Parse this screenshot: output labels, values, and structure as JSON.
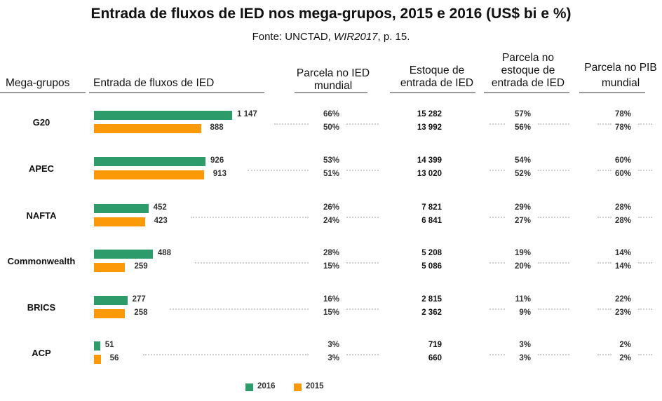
{
  "title": "Entrada de fluxos de IED nos mega-grupos, 2015 e 2016 (US$ bi e %)",
  "source_prefix": "Fonte: UNCTAD, ",
  "source_italic": "WIR2017",
  "source_suffix": ", p. 15.",
  "headers": {
    "group": "Mega-grupos",
    "flows": "Entrada de  fluxos de IED",
    "share_world_1": "Parcela no IED",
    "share_world_2": "mundial",
    "stock_1": "Estoque de",
    "stock_2": "entrada de IED",
    "share_stock_1": "Parcela no",
    "share_stock_2": "estoque de",
    "share_stock_3": "entrada de IED",
    "share_gdp_1": "Parcela no PIB",
    "share_gdp_2": "mundial"
  },
  "colors": {
    "s2016": "#2e9b6a",
    "s2015": "#fb9a06"
  },
  "legend": [
    "2016",
    "2015"
  ],
  "chart_data": {
    "type": "bar",
    "orientation": "horizontal",
    "categories": [
      "G20",
      "APEC",
      "NAFTA",
      "Commonwealth",
      "BRICS",
      "ACP"
    ],
    "series": [
      {
        "name": "2016",
        "values": [
          1147,
          926,
          452,
          488,
          277,
          51
        ]
      },
      {
        "name": "2015",
        "values": [
          888,
          913,
          423,
          259,
          258,
          56
        ]
      }
    ],
    "value_labels": {
      "2016": [
        "1 147",
        "926",
        "452",
        "488",
        "277",
        "51"
      ],
      "2015": [
        "888",
        "913",
        "423",
        "259",
        "258",
        "56"
      ]
    },
    "columns": {
      "share_world_ied": {
        "2016": [
          "66%",
          "53%",
          "26%",
          "28%",
          "16%",
          "3%"
        ],
        "2015": [
          "50%",
          "51%",
          "24%",
          "15%",
          "15%",
          "3%"
        ]
      },
      "stock": {
        "2016": [
          "15 282",
          "14 399",
          "7 821",
          "5 208",
          "2 815",
          "719"
        ],
        "2015": [
          "13 992",
          "13 020",
          "6 841",
          "5 086",
          "2 362",
          "660"
        ]
      },
      "share_stock": {
        "2016": [
          "57%",
          "54%",
          "29%",
          "19%",
          "11%",
          "3%"
        ],
        "2015": [
          "56%",
          "52%",
          "27%",
          "20%",
          "9%",
          "3%"
        ]
      },
      "share_gdp": {
        "2016": [
          "78%",
          "60%",
          "28%",
          "14%",
          "22%",
          "2%"
        ],
        "2015": [
          "78%",
          "60%",
          "28%",
          "14%",
          "23%",
          "2%"
        ]
      }
    },
    "xlim": [
      0,
      1147
    ]
  }
}
